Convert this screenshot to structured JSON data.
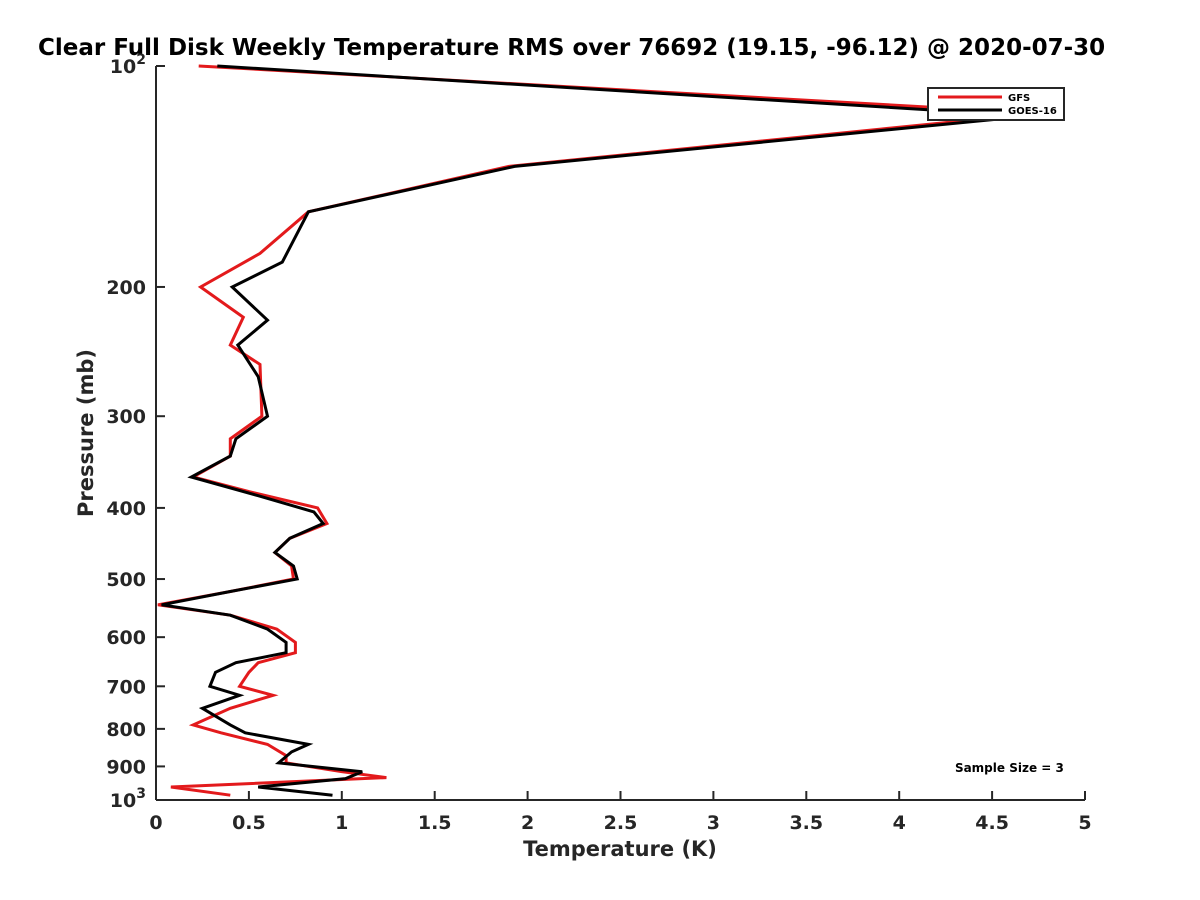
{
  "chart_data": {
    "type": "line",
    "title": "Clear Full Disk Weekly Temperature RMS over 76692 (19.15, -96.12) @ 2020-07-30",
    "xlabel": "Temperature (K)",
    "ylabel": "Pressure (mb)",
    "xlim": [
      0,
      5
    ],
    "ylim": [
      100,
      1000
    ],
    "yscale": "log",
    "y_reversed": true,
    "grid": false,
    "legend_position": "top-right",
    "x_ticks": [
      {
        "value": 0,
        "label": "0"
      },
      {
        "value": 0.5,
        "label": "0.5"
      },
      {
        "value": 1,
        "label": "1"
      },
      {
        "value": 1.5,
        "label": "1.5"
      },
      {
        "value": 2,
        "label": "2"
      },
      {
        "value": 2.5,
        "label": "2.5"
      },
      {
        "value": 3,
        "label": "3"
      },
      {
        "value": 3.5,
        "label": "3.5"
      },
      {
        "value": 4,
        "label": "4"
      },
      {
        "value": 4.5,
        "label": "4.5"
      },
      {
        "value": 5,
        "label": "5"
      }
    ],
    "y_ticks": [
      {
        "value": 100,
        "base": "10",
        "exp": "2"
      },
      {
        "value": 200,
        "label": "200"
      },
      {
        "value": 300,
        "label": "300"
      },
      {
        "value": 400,
        "label": "400"
      },
      {
        "value": 500,
        "label": "500"
      },
      {
        "value": 600,
        "label": "600"
      },
      {
        "value": 700,
        "label": "700"
      },
      {
        "value": 800,
        "label": "800"
      },
      {
        "value": 900,
        "label": "900"
      },
      {
        "value": 1000,
        "base": "10",
        "exp": "3"
      }
    ],
    "series": [
      {
        "name": "GFS",
        "color": "#e31a1c",
        "points": [
          [
            0.23,
            100
          ],
          [
            4.75,
            116
          ],
          [
            1.9,
            137
          ],
          [
            0.82,
            158
          ],
          [
            0.56,
            180
          ],
          [
            0.24,
            200
          ],
          [
            0.47,
            220
          ],
          [
            0.4,
            240
          ],
          [
            0.56,
            255
          ],
          [
            0.57,
            300
          ],
          [
            0.4,
            322
          ],
          [
            0.4,
            340
          ],
          [
            0.2,
            363
          ],
          [
            0.5,
            380
          ],
          [
            0.87,
            400
          ],
          [
            0.92,
            420
          ],
          [
            0.72,
            440
          ],
          [
            0.64,
            460
          ],
          [
            0.73,
            480
          ],
          [
            0.74,
            500
          ],
          [
            0.4,
            520
          ],
          [
            0.01,
            542
          ],
          [
            0.4,
            560
          ],
          [
            0.65,
            585
          ],
          [
            0.75,
            610
          ],
          [
            0.75,
            630
          ],
          [
            0.55,
            650
          ],
          [
            0.5,
            670
          ],
          [
            0.45,
            700
          ],
          [
            0.63,
            720
          ],
          [
            0.4,
            750
          ],
          [
            0.2,
            790
          ],
          [
            0.35,
            810
          ],
          [
            0.6,
            840
          ],
          [
            0.7,
            870
          ],
          [
            0.7,
            890
          ],
          [
            1.0,
            915
          ],
          [
            1.24,
            932
          ],
          [
            0.08,
            960
          ],
          [
            0.4,
            985
          ]
        ]
      },
      {
        "name": "GOES-16",
        "color": "#000000",
        "points": [
          [
            0.33,
            100
          ],
          [
            4.7,
            117
          ],
          [
            1.93,
            137
          ],
          [
            0.82,
            158
          ],
          [
            0.68,
            185
          ],
          [
            0.41,
            200
          ],
          [
            0.6,
            222
          ],
          [
            0.44,
            240
          ],
          [
            0.55,
            265
          ],
          [
            0.6,
            300
          ],
          [
            0.43,
            322
          ],
          [
            0.4,
            340
          ],
          [
            0.19,
            363
          ],
          [
            0.55,
            385
          ],
          [
            0.85,
            405
          ],
          [
            0.9,
            420
          ],
          [
            0.72,
            440
          ],
          [
            0.64,
            460
          ],
          [
            0.74,
            480
          ],
          [
            0.76,
            500
          ],
          [
            0.4,
            520
          ],
          [
            0.03,
            542
          ],
          [
            0.4,
            560
          ],
          [
            0.6,
            585
          ],
          [
            0.7,
            610
          ],
          [
            0.7,
            630
          ],
          [
            0.43,
            650
          ],
          [
            0.32,
            670
          ],
          [
            0.29,
            700
          ],
          [
            0.45,
            720
          ],
          [
            0.25,
            750
          ],
          [
            0.4,
            790
          ],
          [
            0.48,
            810
          ],
          [
            0.82,
            840
          ],
          [
            0.73,
            860
          ],
          [
            0.66,
            890
          ],
          [
            1.11,
            915
          ],
          [
            1.02,
            935
          ],
          [
            0.55,
            960
          ],
          [
            0.95,
            985
          ]
        ]
      }
    ],
    "annotations": [
      {
        "text": "Sample Size = 3",
        "x": 4.3,
        "y": 905
      }
    ]
  }
}
